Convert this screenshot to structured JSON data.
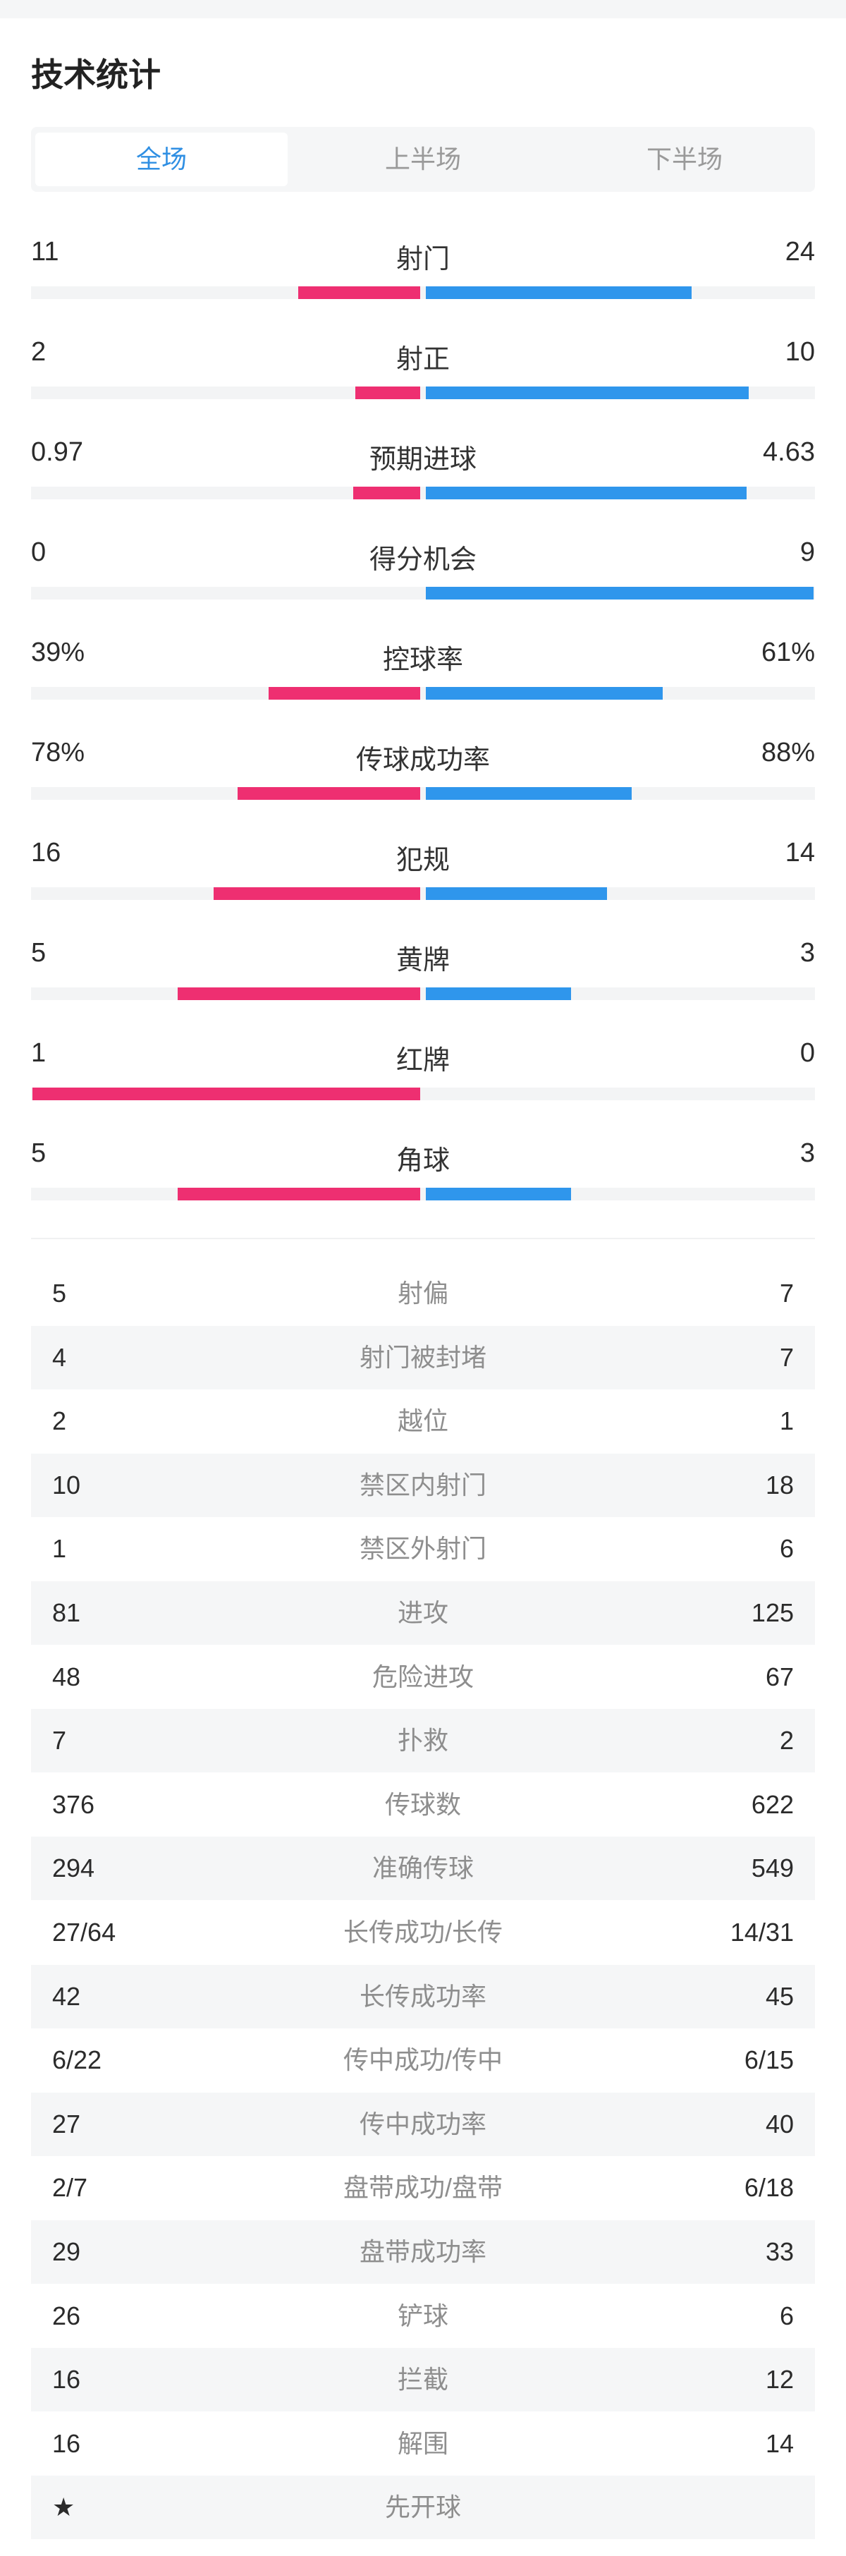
{
  "title": "技术统计",
  "tabs": [
    {
      "label": "全场",
      "active": true
    },
    {
      "label": "上半场",
      "active": false
    },
    {
      "label": "下半场",
      "active": false
    }
  ],
  "colors": {
    "home": "#ee2f71",
    "away": "#2f96ec",
    "accent": "#2f8fe3",
    "track": "#f3f4f5"
  },
  "bar_stats": [
    {
      "name": "射门",
      "left": "11",
      "right": "24",
      "left_share": 0.314,
      "right_share": 0.686
    },
    {
      "name": "射正",
      "left": "2",
      "right": "10",
      "left_share": 0.167,
      "right_share": 0.833
    },
    {
      "name": "预期进球",
      "left": "0.97",
      "right": "4.63",
      "left_share": 0.173,
      "right_share": 0.827
    },
    {
      "name": "得分机会",
      "left": "0",
      "right": "9",
      "left_share": 0,
      "right_share": 1
    },
    {
      "name": "控球率",
      "left": "39%",
      "right": "61%",
      "left_share": 0.39,
      "right_share": 0.61
    },
    {
      "name": "传球成功率",
      "left": "78%",
      "right": "88%",
      "left_share": 0.47,
      "right_share": 0.53
    },
    {
      "name": "犯规",
      "left": "16",
      "right": "14",
      "left_share": 0.533,
      "right_share": 0.467
    },
    {
      "name": "黄牌",
      "left": "5",
      "right": "3",
      "left_share": 0.625,
      "right_share": 0.375
    },
    {
      "name": "红牌",
      "left": "1",
      "right": "0",
      "left_share": 1,
      "right_share": 0
    },
    {
      "name": "角球",
      "left": "5",
      "right": "3",
      "left_share": 0.625,
      "right_share": 0.375
    }
  ],
  "table_stats": [
    {
      "left": "5",
      "name": "射偏",
      "right": "7"
    },
    {
      "left": "4",
      "name": "射门被封堵",
      "right": "7"
    },
    {
      "left": "2",
      "name": "越位",
      "right": "1"
    },
    {
      "left": "10",
      "name": "禁区内射门",
      "right": "18"
    },
    {
      "left": "1",
      "name": "禁区外射门",
      "right": "6"
    },
    {
      "left": "81",
      "name": "进攻",
      "right": "125"
    },
    {
      "left": "48",
      "name": "危险进攻",
      "right": "67"
    },
    {
      "left": "7",
      "name": "扑救",
      "right": "2"
    },
    {
      "left": "376",
      "name": "传球数",
      "right": "622"
    },
    {
      "left": "294",
      "name": "准确传球",
      "right": "549"
    },
    {
      "left": "27/64",
      "name": "长传成功/长传",
      "right": "14/31"
    },
    {
      "left": "42",
      "name": "长传成功率",
      "right": "45"
    },
    {
      "left": "6/22",
      "name": "传中成功/传中",
      "right": "6/15"
    },
    {
      "left": "27",
      "name": "传中成功率",
      "right": "40"
    },
    {
      "left": "2/7",
      "name": "盘带成功/盘带",
      "right": "6/18"
    },
    {
      "left": "29",
      "name": "盘带成功率",
      "right": "33"
    },
    {
      "left": "26",
      "name": "铲球",
      "right": "6"
    },
    {
      "left": "16",
      "name": "拦截",
      "right": "12"
    },
    {
      "left": "16",
      "name": "解围",
      "right": "14"
    },
    {
      "left": "★",
      "name": "先开球",
      "right": ""
    }
  ]
}
